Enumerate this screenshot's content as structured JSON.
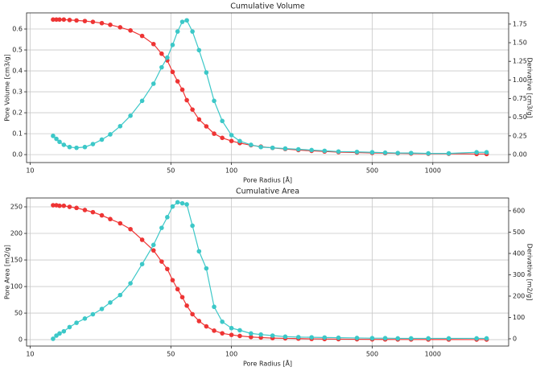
{
  "chart_data": [
    {
      "type": "line",
      "title": "Cumulative Volume",
      "xlabel": "Pore Radius [Å]",
      "ylabel": "Pore Volume [cm3/g]",
      "y2label": "Derivative [cm3/g]",
      "log_x": true,
      "grid": true,
      "x": [
        13,
        13.5,
        14,
        14.7,
        15.7,
        17,
        18.7,
        20.5,
        22.7,
        25,
        28,
        31.5,
        36,
        41,
        45,
        48,
        51,
        54,
        57,
        60,
        64,
        69,
        75,
        82,
        90,
        100,
        110,
        125,
        140,
        160,
        185,
        215,
        250,
        290,
        340,
        420,
        500,
        580,
        670,
        780,
        950,
        1200,
        1650,
        1850
      ],
      "xlim": [
        9.6,
        2380
      ],
      "xticks": [
        10,
        50,
        100,
        500,
        1000
      ],
      "ylim": [
        -0.038,
        0.677
      ],
      "yticks": [
        {
          "value": 0,
          "label": "0.0"
        },
        {
          "value": 0.1,
          "label": "0.1"
        },
        {
          "value": 0.2,
          "label": "0.2"
        },
        {
          "value": 0.3,
          "label": "0.3"
        },
        {
          "value": 0.4,
          "label": "0.4"
        },
        {
          "value": 0.5,
          "label": "0.5"
        },
        {
          "value": 0.6,
          "label": "0.6"
        }
      ],
      "y2lim": [
        -0.108,
        1.9
      ],
      "y2ticks": [
        {
          "value": 0,
          "label": "0.00"
        },
        {
          "value": 0.25,
          "label": "0.25"
        },
        {
          "value": 0.5,
          "label": "0.50"
        },
        {
          "value": 0.75,
          "label": "0.75"
        },
        {
          "value": 1,
          "label": "1.00"
        },
        {
          "value": 1.25,
          "label": "1.25"
        },
        {
          "value": 1.5,
          "label": "1.50"
        },
        {
          "value": 1.75,
          "label": "1.75"
        }
      ],
      "series": [
        {
          "color": "#ee3434",
          "values": [
            0.645,
            0.645,
            0.645,
            0.645,
            0.643,
            0.641,
            0.638,
            0.634,
            0.628,
            0.62,
            0.608,
            0.593,
            0.567,
            0.528,
            0.482,
            0.45,
            0.395,
            0.35,
            0.31,
            0.26,
            0.215,
            0.168,
            0.135,
            0.1,
            0.08,
            0.065,
            0.055,
            0.045,
            0.038,
            0.032,
            0.027,
            0.022,
            0.018,
            0.015,
            0.012,
            0.01,
            0.008,
            0.007,
            0.006,
            0.005,
            0.004,
            0.004,
            0.003,
            0.003
          ]
        },
        {
          "color": "#3cc8c8",
          "axis": "y2",
          "values": [
            0.25,
            0.21,
            0.17,
            0.13,
            0.1,
            0.09,
            0.1,
            0.14,
            0.2,
            0.27,
            0.38,
            0.52,
            0.72,
            0.95,
            1.17,
            1.3,
            1.47,
            1.65,
            1.78,
            1.8,
            1.65,
            1.4,
            1.1,
            0.72,
            0.45,
            0.26,
            0.18,
            0.13,
            0.1,
            0.09,
            0.08,
            0.07,
            0.06,
            0.05,
            0.04,
            0.035,
            0.03,
            0.025,
            0.02,
            0.02,
            0.015,
            0.015,
            0.03,
            0.03
          ]
        }
      ]
    },
    {
      "type": "line",
      "title": "Cumulative Area",
      "xlabel": "Pore Radius [Å]",
      "ylabel": "Pore Area [m2/g]",
      "y2label": "Derivative [m2/g]",
      "log_x": true,
      "grid": true,
      "x": [
        13,
        13.5,
        14,
        14.7,
        15.7,
        17,
        18.7,
        20.5,
        22.7,
        25,
        28,
        31.5,
        36,
        41,
        45,
        48,
        51,
        54,
        57,
        60,
        64,
        69,
        75,
        82,
        90,
        100,
        110,
        125,
        140,
        160,
        185,
        215,
        250,
        290,
        340,
        420,
        500,
        580,
        670,
        780,
        950,
        1200,
        1650,
        1850
      ],
      "xlim": [
        9.6,
        2380
      ],
      "xticks": [
        10,
        50,
        100,
        500,
        1000
      ],
      "ylim": [
        -12,
        266.7
      ],
      "yticks": [
        0,
        50,
        100,
        150,
        200,
        250
      ],
      "y2lim": [
        -34,
        660
      ],
      "y2ticks": [
        0,
        100,
        200,
        300,
        400,
        500,
        600
      ],
      "series": [
        {
          "color": "#ee3434",
          "values": [
            253,
            253,
            252,
            252,
            250,
            248,
            244,
            240,
            234,
            227,
            219,
            208,
            188,
            168,
            147,
            133,
            112,
            95,
            80,
            64,
            48,
            35,
            25,
            17,
            12,
            9,
            7,
            5,
            4,
            3,
            2.5,
            2,
            1.5,
            1.2,
            1,
            0.8,
            0.6,
            0.5,
            0.4,
            0.4,
            0.3,
            0.3,
            0.2,
            0.2
          ]
        },
        {
          "color": "#3cc8c8",
          "axis": "y2",
          "values": [
            0,
            15,
            25,
            35,
            55,
            75,
            95,
            115,
            140,
            170,
            205,
            260,
            350,
            440,
            520,
            570,
            620,
            640,
            635,
            630,
            530,
            410,
            330,
            150,
            80,
            50,
            40,
            25,
            20,
            15,
            10,
            8,
            7,
            6,
            5,
            4,
            3,
            3,
            2,
            2,
            2,
            2,
            2,
            2
          ]
        }
      ]
    }
  ]
}
